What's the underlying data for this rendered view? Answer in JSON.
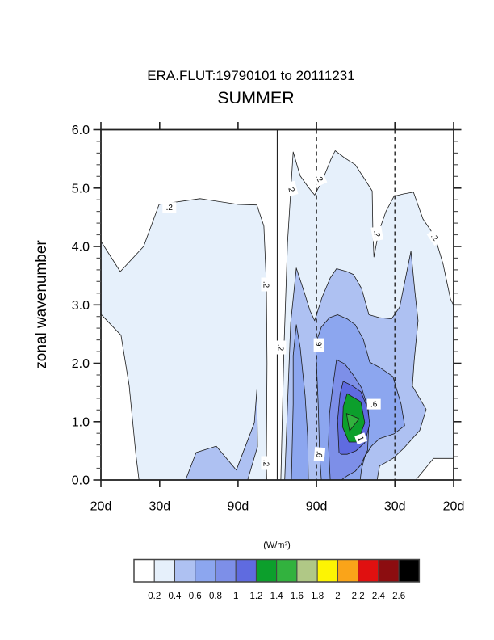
{
  "titles": {
    "line1": "ERA.FLUT:19790101 to 20111231",
    "line2": "SUMMER"
  },
  "chart_data": {
    "type": "filled_contour",
    "subtitle": "ERA.FLUT:19790101 to 20111231",
    "title": "SUMMER",
    "ylabel": "zonal wavenumber",
    "y_range": [
      0.0,
      6.0
    ],
    "y_major_ticks": [
      "0.0",
      "1.0",
      "2.0",
      "3.0",
      "4.0",
      "5.0",
      "6.0"
    ],
    "y_minor_step": 0.2,
    "x_axis_kind": "frequency (cycles/day), labeled by period",
    "x_range_cpd": [
      -0.05,
      0.05
    ],
    "x_ticks": [
      {
        "f": -0.05,
        "label": "20d"
      },
      {
        "f": -0.033333,
        "label": "30d"
      },
      {
        "f": -0.011111,
        "label": "90d"
      },
      {
        "f": 0.011111,
        "label": "90d"
      },
      {
        "f": 0.033333,
        "label": "30d"
      },
      {
        "f": 0.05,
        "label": "20d"
      }
    ],
    "reference_lines": [
      {
        "f": 0.0,
        "style": "solid"
      },
      {
        "f": 0.011111,
        "style": "dashed"
      },
      {
        "f": 0.033333,
        "style": "dashed"
      }
    ],
    "units": "(W/m²)",
    "grid": false,
    "legend": "colorbar-bottom",
    "levels": [
      0.2,
      0.4,
      0.6,
      0.8,
      1,
      1.2,
      1.4,
      1.6,
      1.8,
      2,
      2.2,
      2.4,
      2.6
    ],
    "palette": [
      "#FFFFFF",
      "#E6F0FB",
      "#AEC1F2",
      "#8CA6EF",
      "#7D8FE8",
      "#5F6BE0",
      "#0C9F2C",
      "#32B23E",
      "#B0C886",
      "#FDF403",
      "#FAA419",
      "#E01010",
      "#8C0D10",
      "#000000"
    ],
    "contour_stroke": "#1b1b1b",
    "contour_polygons": [
      {
        "name": "west-ge-0.2",
        "level": 0.2,
        "color": "#E6F0FB",
        "points": [
          [
            -0.05,
            4.09
          ],
          [
            -0.0445,
            3.57
          ],
          [
            -0.0379,
            4.0
          ],
          [
            -0.0335,
            4.72
          ],
          [
            -0.0219,
            4.82
          ],
          [
            -0.0111,
            4.72
          ],
          [
            -0.0058,
            4.71
          ],
          [
            -0.0038,
            4.35
          ],
          [
            -0.0031,
            3.35
          ],
          [
            -0.0029,
            2.0
          ],
          [
            -0.0031,
            0.29
          ],
          [
            -0.003,
            0.0
          ],
          [
            -0.0392,
            0.0
          ],
          [
            -0.0401,
            0.44
          ],
          [
            -0.042,
            1.62
          ],
          [
            -0.0443,
            2.48
          ],
          [
            -0.05,
            2.84
          ]
        ]
      },
      {
        "name": "west-ge-0.4",
        "level": 0.4,
        "color": "#AEC1F2",
        "points": [
          [
            -0.026,
            0.0
          ],
          [
            -0.023,
            0.47
          ],
          [
            -0.0173,
            0.58
          ],
          [
            -0.0116,
            0.17
          ],
          [
            -0.0065,
            0.98
          ],
          [
            -0.0058,
            1.54
          ],
          [
            -0.0056,
            0.57
          ],
          [
            -0.0084,
            0.0
          ]
        ]
      },
      {
        "name": "east-ge-0.2",
        "level": 0.2,
        "color": "#E6F0FB",
        "points": [
          [
            0.001,
            0.0
          ],
          [
            0.0019,
            2.27
          ],
          [
            0.0029,
            4.07
          ],
          [
            0.0045,
            5.62
          ],
          [
            0.0065,
            5.21
          ],
          [
            0.009,
            5.0
          ],
          [
            0.0106,
            4.88
          ],
          [
            0.0129,
            5.15
          ],
          [
            0.0152,
            5.49
          ],
          [
            0.0164,
            5.64
          ],
          [
            0.0193,
            5.51
          ],
          [
            0.0221,
            5.4
          ],
          [
            0.0248,
            5.15
          ],
          [
            0.0269,
            4.95
          ],
          [
            0.0271,
            4.28
          ],
          [
            0.0274,
            3.82
          ],
          [
            0.0287,
            4.24
          ],
          [
            0.0308,
            4.6
          ],
          [
            0.0331,
            4.86
          ],
          [
            0.0358,
            4.9
          ],
          [
            0.0386,
            4.93
          ],
          [
            0.0413,
            4.47
          ],
          [
            0.0447,
            4.17
          ],
          [
            0.047,
            3.7
          ],
          [
            0.0491,
            3.1
          ],
          [
            0.05,
            2.99
          ],
          [
            0.05,
            0.37
          ],
          [
            0.0443,
            0.37
          ],
          [
            0.0393,
            0.0
          ]
        ]
      },
      {
        "name": "east-ge-0.4",
        "level": 0.4,
        "color": "#AEC1F2",
        "points": [
          [
            0.0021,
            0.0
          ],
          [
            0.0031,
            1.58
          ],
          [
            0.0038,
            2.69
          ],
          [
            0.0054,
            3.63
          ],
          [
            0.0077,
            3.21
          ],
          [
            0.0093,
            2.9
          ],
          [
            0.0106,
            2.73
          ],
          [
            0.0127,
            3.13
          ],
          [
            0.015,
            3.46
          ],
          [
            0.0168,
            3.62
          ],
          [
            0.0198,
            3.57
          ],
          [
            0.0216,
            3.52
          ],
          [
            0.0239,
            3.28
          ],
          [
            0.026,
            2.83
          ],
          [
            0.029,
            2.78
          ],
          [
            0.0324,
            2.76
          ],
          [
            0.0347,
            2.96
          ],
          [
            0.0379,
            3.92
          ],
          [
            0.039,
            3.24
          ],
          [
            0.0399,
            2.73
          ],
          [
            0.0388,
            2.04
          ],
          [
            0.0383,
            1.61
          ],
          [
            0.0422,
            1.21
          ],
          [
            0.0404,
            0.85
          ],
          [
            0.0358,
            0.54
          ],
          [
            0.0328,
            0.37
          ],
          [
            0.029,
            0.24
          ],
          [
            0.0283,
            0.0
          ]
        ]
      },
      {
        "name": "east-ge-0.6-west-lobe",
        "level": 0.6,
        "color": "#8CA6EF",
        "points": [
          [
            0.004,
            0.0
          ],
          [
            0.0045,
            1.3
          ],
          [
            0.0045,
            2.13
          ],
          [
            0.0054,
            2.66
          ],
          [
            0.0065,
            2.27
          ],
          [
            0.0079,
            1.44
          ],
          [
            0.0086,
            0.75
          ],
          [
            0.0088,
            0.0
          ]
        ]
      },
      {
        "name": "east-ge-0.6-main",
        "level": 0.6,
        "color": "#8CA6EF",
        "points": [
          [
            0.0125,
            0.0
          ],
          [
            0.012,
            0.44
          ],
          [
            0.0116,
            1.3
          ],
          [
            0.0111,
            2.0
          ],
          [
            0.0109,
            2.34
          ],
          [
            0.0125,
            2.62
          ],
          [
            0.0148,
            2.78
          ],
          [
            0.0171,
            2.83
          ],
          [
            0.0198,
            2.76
          ],
          [
            0.0221,
            2.66
          ],
          [
            0.0244,
            2.41
          ],
          [
            0.0262,
            2.02
          ],
          [
            0.029,
            1.93
          ],
          [
            0.0328,
            1.77
          ],
          [
            0.0351,
            1.3
          ],
          [
            0.0361,
            0.93
          ],
          [
            0.0331,
            0.79
          ],
          [
            0.029,
            0.71
          ],
          [
            0.0267,
            0.58
          ],
          [
            0.0248,
            0.4
          ],
          [
            0.0239,
            0.19
          ],
          [
            0.0235,
            0.0
          ]
        ]
      },
      {
        "name": "east-ge-0.8",
        "level": 0.8,
        "color": "#7D8FE8",
        "points": [
          [
            0.015,
            0.0
          ],
          [
            0.0145,
            0.61
          ],
          [
            0.0148,
            1.14
          ],
          [
            0.0157,
            1.58
          ],
          [
            0.0168,
            2.06
          ],
          [
            0.0191,
            1.99
          ],
          [
            0.0214,
            1.81
          ],
          [
            0.0239,
            1.58
          ],
          [
            0.0258,
            1.22
          ],
          [
            0.026,
            1.01
          ],
          [
            0.0256,
            0.51
          ],
          [
            0.0237,
            0.26
          ],
          [
            0.0221,
            0.15
          ],
          [
            0.0198,
            0.07
          ],
          [
            0.0182,
            0.0
          ]
        ]
      },
      {
        "name": "east-ge-1.0",
        "level": 1.0,
        "color": "#5F6BE0",
        "points": [
          [
            0.0175,
            0.47
          ],
          [
            0.0171,
            1.02
          ],
          [
            0.0178,
            1.47
          ],
          [
            0.0187,
            1.69
          ],
          [
            0.0214,
            1.61
          ],
          [
            0.0237,
            1.51
          ],
          [
            0.0256,
            1.23
          ],
          [
            0.0262,
            0.96
          ],
          [
            0.0248,
            0.64
          ],
          [
            0.0223,
            0.5
          ],
          [
            0.0198,
            0.44
          ],
          [
            0.0182,
            0.44
          ]
        ]
      },
      {
        "name": "east-ge-1.2",
        "level": 1.2,
        "color": "#0C9F2C",
        "points": [
          [
            0.0198,
            1.48
          ],
          [
            0.0237,
            1.34
          ],
          [
            0.0248,
            0.98
          ],
          [
            0.0228,
            0.65
          ],
          [
            0.0203,
            0.65
          ],
          [
            0.0185,
            0.91
          ],
          [
            0.0187,
            1.26
          ]
        ]
      },
      {
        "name": "east-ge-1.4",
        "level": 1.4,
        "color": "#32B23E",
        "points": [
          [
            0.0196,
            1.14
          ],
          [
            0.0232,
            1.05
          ],
          [
            0.0205,
            0.84
          ]
        ]
      }
    ],
    "contour_labels": [
      {
        "text": ".2",
        "f": -0.0306,
        "wn": 4.67,
        "rot": 0
      },
      {
        "text": ".2",
        "f": -0.0031,
        "wn": 3.35,
        "rot": 90
      },
      {
        "text": ".2",
        "f": -0.0031,
        "wn": 0.29,
        "rot": 90
      },
      {
        "text": ".2",
        "f": 0.001,
        "wn": 2.27,
        "rot": 90
      },
      {
        "text": ".2",
        "f": 0.004,
        "wn": 4.99,
        "rot": 75
      },
      {
        "text": ".2",
        "f": 0.012,
        "wn": 5.17,
        "rot": 65
      },
      {
        "text": ".2",
        "f": 0.0283,
        "wn": 4.22,
        "rot": 80
      },
      {
        "text": ".2",
        "f": 0.0447,
        "wn": 4.16,
        "rot": 55
      },
      {
        "text": ".6",
        "f": 0.0118,
        "wn": 2.31,
        "rot": -90
      },
      {
        "text": ".6",
        "f": 0.0274,
        "wn": 1.3,
        "rot": 0
      },
      {
        "text": ".6",
        "f": 0.012,
        "wn": 0.44,
        "rot": 95
      },
      {
        "text": "1",
        "f": 0.0237,
        "wn": 0.71,
        "rot": 70
      }
    ]
  },
  "colorbar": {
    "units": "(W/m²)",
    "tick_labels": [
      "0.2",
      "0.4",
      "0.6",
      "0.8",
      "1",
      "1.2",
      "1.4",
      "1.6",
      "1.8",
      "2",
      "2.2",
      "2.4",
      "2.6"
    ],
    "colors": [
      "#FFFFFF",
      "#E6F0FB",
      "#AEC1F2",
      "#8CA6EF",
      "#7D8FE8",
      "#5F6BE0",
      "#0C9F2C",
      "#32B23E",
      "#B0C886",
      "#FDF403",
      "#FAA419",
      "#E01010",
      "#8C0D10",
      "#000000"
    ]
  }
}
